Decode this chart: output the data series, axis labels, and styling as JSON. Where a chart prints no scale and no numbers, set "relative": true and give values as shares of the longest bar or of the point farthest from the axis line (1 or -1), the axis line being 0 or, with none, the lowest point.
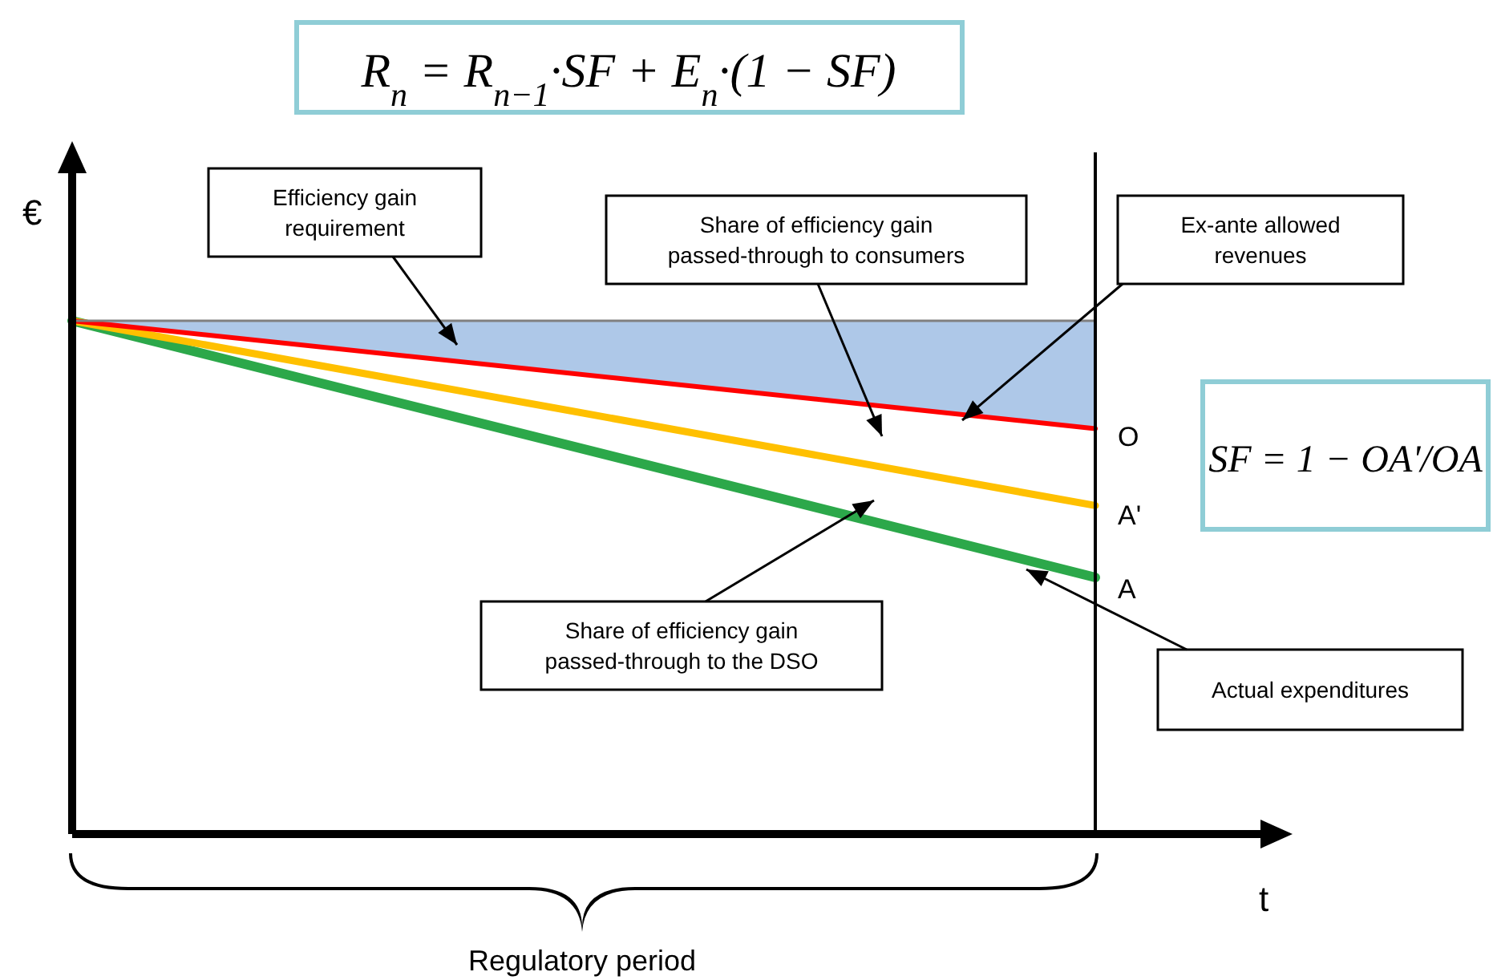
{
  "chart_data": {
    "type": "line",
    "relative": true,
    "title": "R$_{n}$ = R$_{n−1}$·SF + E$_{n}$·(1 − SF)",
    "xlabel": "t",
    "ylabel": "€",
    "categories": [
      null,
      null
    ],
    "series": [
      {
        "color": "#808080",
        "values": [
          1,
          1
        ],
        "lower": [
          1,
          0.79
        ],
        "upper": [
          1,
          1
        ]
      },
      {
        "color": "#ff0000",
        "values": [
          1,
          0.79
        ]
      },
      {
        "color": "#ffc000",
        "values": [
          1,
          0.64
        ]
      },
      {
        "color": "#2ca84a",
        "values": [
          1,
          0.5
        ]
      }
    ],
    "annotations": [
      "Efficiency gain requirement",
      "Share of efficiency gain passed-through to consumers",
      "Ex-ante allowed revenues",
      "Share of efficiency gain passed-through to the DSO",
      "Actual expenditures",
      "O",
      "A'",
      "A",
      "Regulatory period",
      "SF = 1 − OA'/OA"
    ],
    "grid": false,
    "line_style": "solid"
  }
}
